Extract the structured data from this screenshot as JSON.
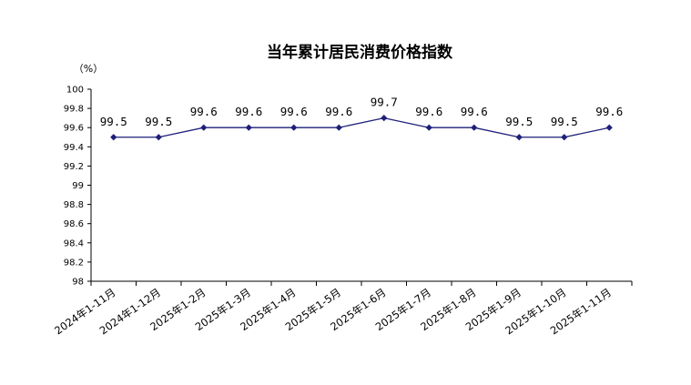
{
  "chart_data": {
    "type": "line",
    "title": "当年累计居民消费价格指数",
    "ylabel": "",
    "unit_label": "（%）",
    "xlabel": "",
    "categories": [
      "2024年1-11月",
      "2024年1-12月",
      "2025年1-2月",
      "2025年1-3月",
      "2025年1-4月",
      "2025年1-5月",
      "2025年1-6月",
      "2025年1-7月",
      "2025年1-8月",
      "2025年1-9月",
      "2025年1-10月",
      "2025年1-11月"
    ],
    "series": [
      {
        "values": [
          99.5,
          99.5,
          99.6,
          99.6,
          99.6,
          99.6,
          99.7,
          99.6,
          99.6,
          99.5,
          99.5,
          99.6
        ],
        "data_labels": [
          "99.5",
          "99.5",
          "99.6",
          "99.6",
          "99.6",
          "99.6",
          "99.7",
          "99.6",
          "99.6",
          "99.5",
          "99.5",
          "99.6"
        ],
        "color": "#1F1F7A"
      }
    ],
    "ylim": [
      98,
      100
    ],
    "yticks": [
      "98",
      "98.2",
      "98.4",
      "98.6",
      "98.8",
      "99",
      "99.2",
      "99.4",
      "99.6",
      "99.8",
      "100"
    ],
    "grid": false,
    "legend": "none"
  }
}
